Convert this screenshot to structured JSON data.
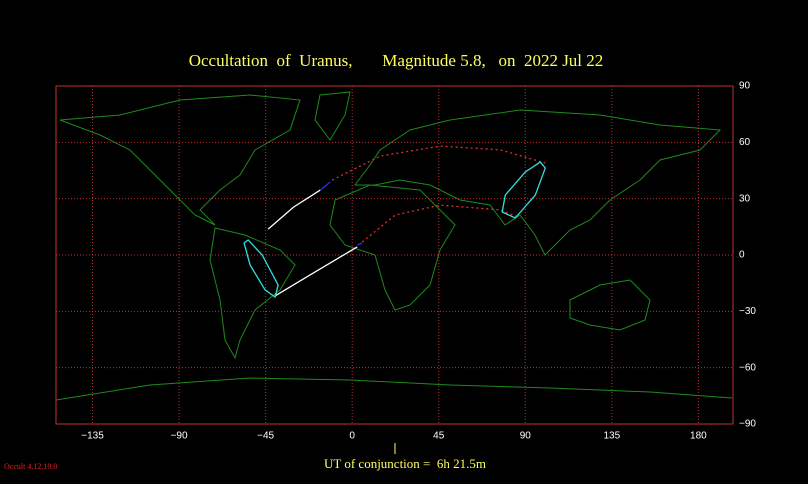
{
  "chart_data": {
    "type": "line",
    "title": "Occultation  of  Uranus,       Magnitude 5.8,   on  2022 Jul 22",
    "footer": "UT of conjunction =  6h 21.5m",
    "version": "Occult 4.12.10.0",
    "xlim": [
      -154,
      198
    ],
    "ylim": [
      -90,
      90
    ],
    "xticks": [
      {
        "value": -135,
        "label": "−135"
      },
      {
        "value": -90,
        "label": "−90"
      },
      {
        "value": -45,
        "label": "−45"
      },
      0,
      45,
      90,
      135,
      180
    ],
    "yticks": [
      90,
      60,
      30,
      0,
      {
        "value": -30,
        "label": "−30"
      },
      {
        "value": -60,
        "label": "−60"
      },
      {
        "value": -90,
        "label": "−90"
      }
    ],
    "grid": true,
    "grid_color": "#c03030",
    "series": [
      {
        "color": "#ffffff",
        "x": [
          -43.7,
          -30.5,
          -16.6
        ],
        "y": [
          13.8,
          25.5,
          34.6
        ]
      },
      {
        "color": "#2030ff",
        "x": [
          -16.6,
          -11.4
        ],
        "y": [
          34.6,
          38.9
        ]
      },
      {
        "color": "#ffffff",
        "x": [
          -40.1,
          -21.9,
          2.6
        ],
        "y": [
          -21.8,
          -10.6,
          4.3
        ]
      },
      {
        "color": "#2030ff",
        "x": [
          2.6,
          5.2
        ],
        "y": [
          5.3,
          6.4
        ]
      },
      {
        "color": "#e03030",
        "dash": true,
        "x": [
          -10.4,
          14.6,
          45.8,
          77,
          100.4
        ],
        "y": [
          39.9,
          52.7,
          58,
          56,
          49
        ]
      },
      {
        "color": "#e03030",
        "dash": true,
        "x": [
          5.2,
          22.4,
          45.8,
          77,
          87.4
        ],
        "y": [
          6.9,
          21.3,
          26.6,
          24,
          19.7
        ]
      },
      {
        "color": "#30e0e0",
        "closed": true,
        "x": [
          -54.1,
          -46.8,
          -38.5,
          -40.1,
          -45.3,
          -53.1,
          -56.2
        ],
        "y": [
          8.0,
          0,
          -16.0,
          -22.4,
          -18.6,
          -5.3,
          6.4
        ]
      },
      {
        "color": "#30e0e0",
        "closed": true,
        "x": [
          97.8,
          100.4,
          95.2,
          84.8,
          78,
          79.6,
          90
        ],
        "y": [
          49.5,
          46.3,
          31.9,
          19.7,
          22.9,
          31.9,
          44.2
        ]
      }
    ]
  }
}
